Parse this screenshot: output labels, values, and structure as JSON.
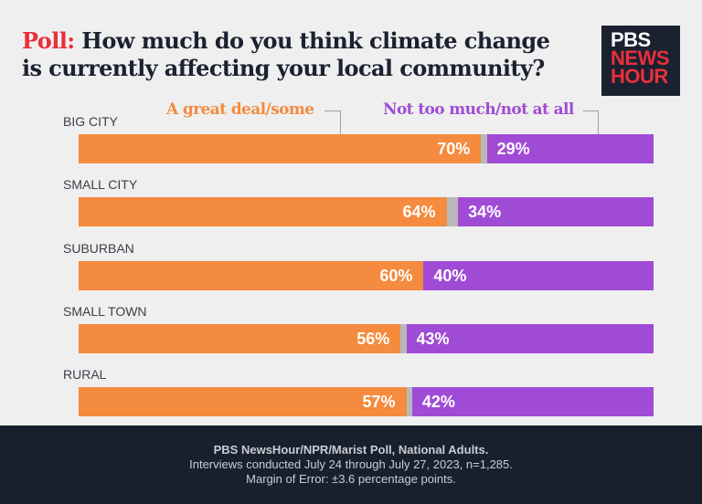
{
  "title": {
    "lead": "Poll:",
    "text": "How much do you think climate change is currently affecting your local community?"
  },
  "logo": {
    "line1": "PBS",
    "line2": "NEWS",
    "line3": "HOUR"
  },
  "chart_data": {
    "type": "bar",
    "orientation": "horizontal-stacked",
    "categories": [
      "BIG CITY",
      "SMALL CITY",
      "SUBURBAN",
      "SMALL TOWN",
      "RURAL"
    ],
    "series": [
      {
        "name": "A great deal/some",
        "color": "#f48b3e",
        "values": [
          70,
          64,
          60,
          56,
          57
        ]
      },
      {
        "name": "Not too much/not at all",
        "color": "#a04bd6",
        "values": [
          29,
          34,
          40,
          43,
          42
        ]
      }
    ],
    "remainder_color": "#b9b9b9",
    "xlim": [
      0,
      100
    ],
    "value_suffix": "%"
  },
  "footer": {
    "line1": "PBS NewsHour/NPR/Marist Poll, National Adults.",
    "line2": "Interviews conducted July 24 through July 27, 2023, n=1,285.",
    "line3": "Margin of Error: ±3.6 percentage points."
  }
}
